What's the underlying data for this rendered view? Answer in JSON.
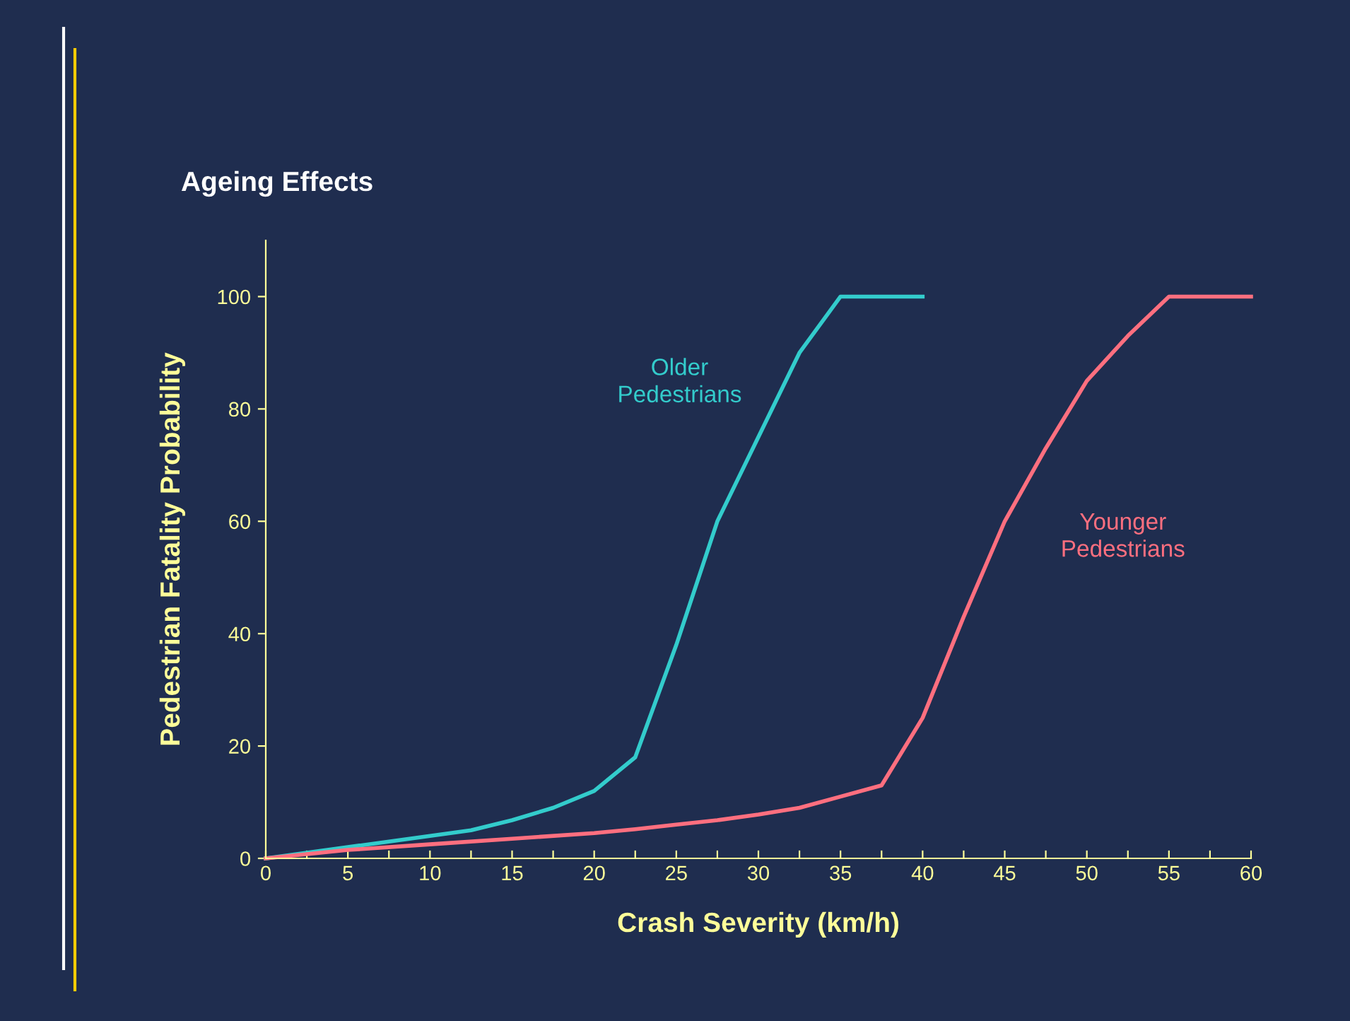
{
  "chart_data": {
    "type": "line",
    "title": "Ageing Effects",
    "xlabel": "Crash Severity (km/h)",
    "ylabel": "Pedestrian Fatality Probability",
    "xlim": [
      0,
      60
    ],
    "xticks": [
      0,
      {
        "value": 2.5,
        "label": null
      },
      5,
      {
        "value": 7.5,
        "label": null
      },
      10,
      {
        "value": 12.5,
        "label": null
      },
      15,
      {
        "value": 17.5,
        "label": null
      },
      20,
      {
        "value": 22.5,
        "label": null
      },
      25,
      {
        "value": 27.5,
        "label": null
      },
      30,
      {
        "value": 32.5,
        "label": null
      },
      35,
      {
        "value": 37.5,
        "label": null
      },
      40,
      {
        "value": 42.5,
        "label": null
      },
      45,
      {
        "value": 47.5,
        "label": null
      },
      50,
      {
        "value": 52.5,
        "label": null
      },
      55,
      {
        "value": 57.5,
        "label": null
      },
      60
    ],
    "ylim": [
      0,
      110
    ],
    "yticks": [
      0,
      20,
      40,
      60,
      80,
      100
    ],
    "grid": false,
    "legend": false,
    "marker": "none",
    "line_style": "solid",
    "series": [
      {
        "name": "Older\nPedestrians",
        "color": "#33cccc",
        "x": [
          0,
          5,
          7.5,
          10,
          12.5,
          15,
          17.5,
          20,
          22.5,
          25,
          27.5,
          30,
          32.5,
          35,
          40
        ],
        "values": [
          0,
          2,
          3,
          4,
          5,
          6.8,
          9,
          12,
          18,
          38,
          60,
          75,
          90,
          100,
          100
        ]
      },
      {
        "name": "Younger\nPedestrians",
        "color": "#ff6f7f",
        "x": [
          0,
          5,
          10,
          15,
          20,
          22.5,
          25,
          27.5,
          30,
          32.5,
          35,
          37.5,
          40,
          42.5,
          45,
          47.5,
          50,
          52.5,
          55,
          60
        ],
        "values": [
          0,
          1.5,
          2.5,
          3.5,
          4.5,
          5.2,
          6,
          6.8,
          7.8,
          9,
          11,
          13,
          25,
          43,
          60,
          73,
          85,
          93,
          100,
          100
        ]
      }
    ]
  }
}
